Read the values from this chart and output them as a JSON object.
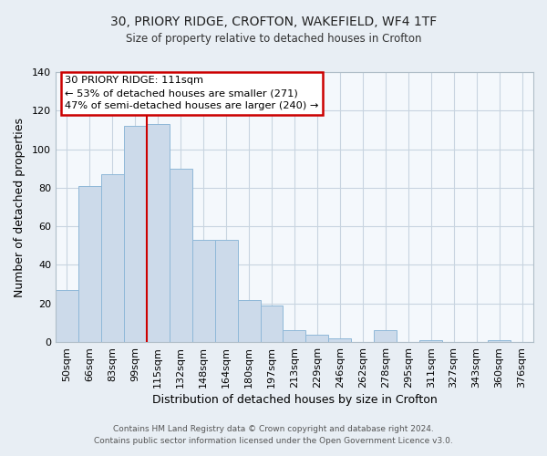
{
  "title1": "30, PRIORY RIDGE, CROFTON, WAKEFIELD, WF4 1TF",
  "title2": "Size of property relative to detached houses in Crofton",
  "xlabel": "Distribution of detached houses by size in Crofton",
  "ylabel": "Number of detached properties",
  "footer1": "Contains HM Land Registry data © Crown copyright and database right 2024.",
  "footer2": "Contains public sector information licensed under the Open Government Licence v3.0.",
  "bar_labels": [
    "50sqm",
    "66sqm",
    "83sqm",
    "99sqm",
    "115sqm",
    "132sqm",
    "148sqm",
    "164sqm",
    "180sqm",
    "197sqm",
    "213sqm",
    "229sqm",
    "246sqm",
    "262sqm",
    "278sqm",
    "295sqm",
    "311sqm",
    "327sqm",
    "343sqm",
    "360sqm",
    "376sqm"
  ],
  "bar_values": [
    27,
    81,
    87,
    112,
    113,
    90,
    53,
    53,
    22,
    19,
    6,
    4,
    2,
    0,
    6,
    0,
    1,
    0,
    0,
    1,
    0
  ],
  "bar_color": "#ccdaea",
  "bar_edge_color": "#8fb8d8",
  "vline_position": 4,
  "vline_color": "#cc0000",
  "annotation_title": "30 PRIORY RIDGE: 111sqm",
  "annotation_line1": "← 53% of detached houses are smaller (271)",
  "annotation_line2": "47% of semi-detached houses are larger (240) →",
  "annotation_box_facecolor": "#ffffff",
  "annotation_box_edgecolor": "#cc0000",
  "ylim": [
    0,
    140
  ],
  "yticks": [
    0,
    20,
    40,
    60,
    80,
    100,
    120,
    140
  ],
  "grid_color": "#c8d4e0",
  "background_color": "#e8eef4",
  "plot_background_color": "#f4f8fc"
}
